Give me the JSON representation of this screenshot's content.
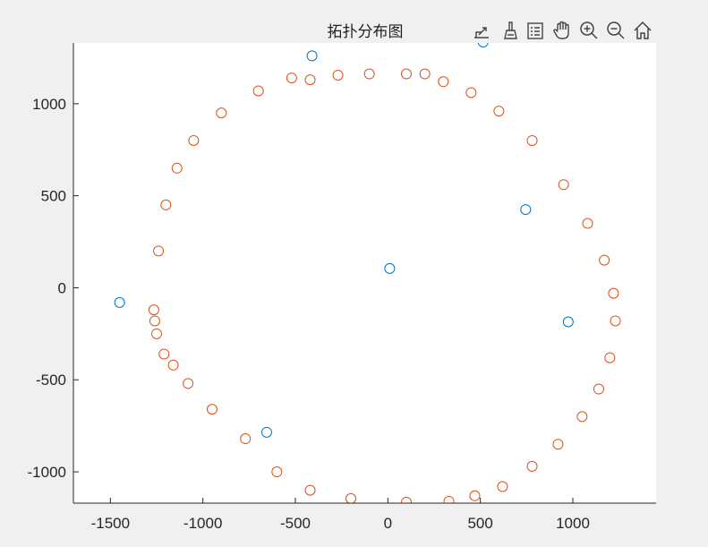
{
  "toolbar": {
    "icons": [
      "export-icon",
      "brush-icon",
      "legend-icon",
      "pan-hand-icon",
      "zoom-in-icon",
      "zoom-out-icon",
      "home-icon"
    ]
  },
  "chart_data": {
    "type": "scatter",
    "title": "拓扑分布图",
    "xlabel": "",
    "ylabel": "",
    "xlim": [
      -1700,
      1450
    ],
    "ylim": [
      -1170,
      1330
    ],
    "xticks": [
      -1500,
      -1000,
      -500,
      0,
      500,
      1000
    ],
    "yticks": [
      -1000,
      -500,
      0,
      500,
      1000
    ],
    "xtick_labels": [
      "-1500",
      "-1000",
      "-500",
      "0",
      "500",
      "1000"
    ],
    "ytick_labels": [
      "-1000",
      "-500",
      "0",
      "500",
      "1000"
    ],
    "grid": false,
    "marker": "circle-open",
    "series": [
      {
        "color": "#0072BD",
        "x": [
          -1450,
          -410,
          10,
          515,
          745,
          975,
          -655
        ],
        "y": [
          -80,
          1260,
          105,
          1335,
          425,
          -185,
          -785
        ]
      },
      {
        "color": "#D95319",
        "x": [
          -1260,
          -1240,
          -1200,
          -1140,
          -1050,
          -900,
          -700,
          -520,
          -420,
          -270,
          -100,
          100,
          200,
          300,
          450,
          600,
          780,
          950,
          1080,
          1170,
          1220,
          1230,
          1200,
          1140,
          1050,
          920,
          780,
          620,
          470,
          330,
          100,
          -200,
          -420,
          -600,
          -770,
          -950,
          -1080,
          -1160,
          -1210,
          -1250,
          -1265
        ],
        "y": [
          -180,
          200,
          450,
          650,
          800,
          950,
          1070,
          1140,
          1130,
          1155,
          1162,
          1162,
          1162,
          1120,
          1060,
          960,
          800,
          560,
          350,
          150,
          -30,
          -180,
          -380,
          -550,
          -700,
          -850,
          -970,
          -1080,
          -1130,
          -1160,
          -1165,
          -1145,
          -1100,
          -1000,
          -820,
          -660,
          -520,
          -420,
          -360,
          -250,
          -120
        ]
      }
    ]
  }
}
